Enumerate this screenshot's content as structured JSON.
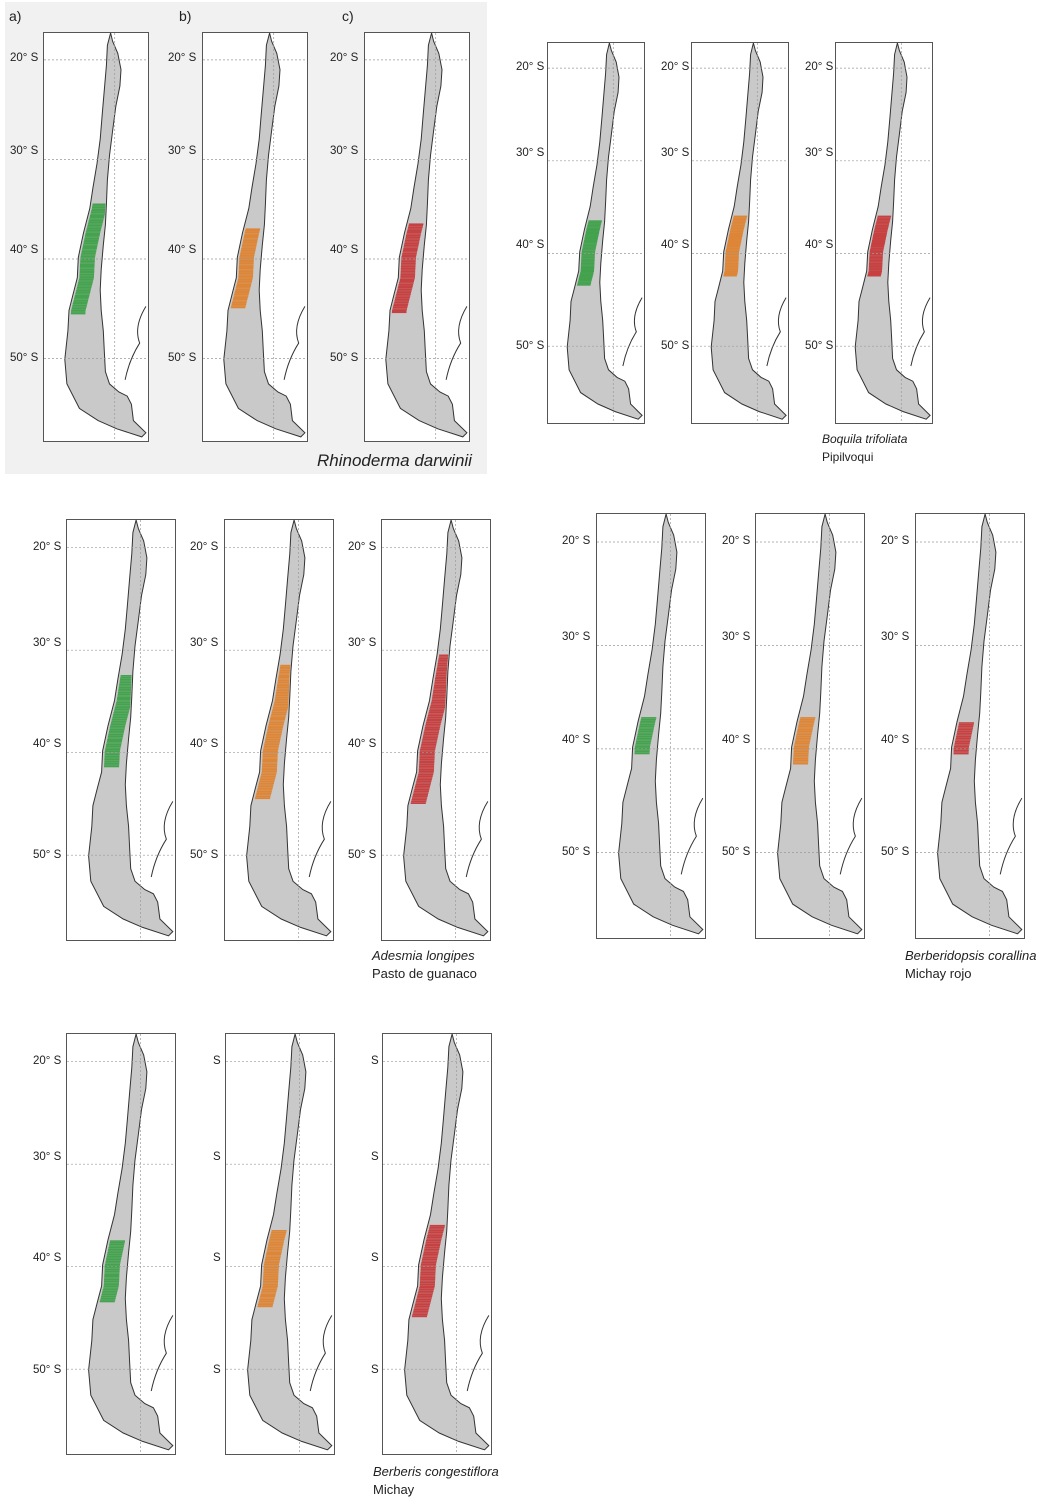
{
  "scenario_colors": [
    "#2e9b3a",
    "#e07a1f",
    "#c62a2a"
  ],
  "panel_letters": [
    "a)",
    "b)",
    "c)"
  ],
  "land_color": "#c9c9c9",
  "coast_color": "#333333",
  "species": [
    {
      "scientific_name": "Rhinoderma darwinii",
      "common_name": "",
      "lat_labels": [
        [
          "20° S",
          "30° S",
          "40° S",
          "50° S"
        ],
        [
          "20° S",
          "30° S",
          "40° S",
          "50° S"
        ],
        [
          "20° S",
          "30° S",
          "40° S",
          "50° S"
        ]
      ],
      "distribution_latitude_range": [
        [
          34.5,
          45.5
        ],
        [
          37.0,
          45.0
        ],
        [
          36.5,
          45.5
        ]
      ]
    },
    {
      "scientific_name": "Boquila trifoliata",
      "common_name": "Pipilvoqui",
      "lat_labels": [
        [
          "20° S",
          "30° S",
          "40° S",
          "50° S"
        ],
        [
          "20° S",
          "30° S",
          "40° S",
          "50° S"
        ],
        [
          "20° S",
          "30° S",
          "40° S",
          "50° S"
        ]
      ],
      "distribution_latitude_range": [
        [
          36.5,
          43.5
        ],
        [
          36.0,
          42.5
        ],
        [
          36.0,
          42.5
        ]
      ]
    },
    {
      "scientific_name": "Adesmia longipes",
      "common_name": "Pasto de guanaco",
      "lat_labels": [
        [
          "20° S",
          "30° S",
          "40° S",
          "50° S"
        ],
        [
          "20° S",
          "30° S",
          "40° S",
          "50° S"
        ],
        [
          "20° S",
          "30° S",
          "40° S",
          "50° S"
        ]
      ],
      "distribution_latitude_range": [
        [
          32.5,
          41.5
        ],
        [
          31.5,
          44.5
        ],
        [
          30.5,
          45.0
        ]
      ]
    },
    {
      "scientific_name": "Berberidopsis corallina",
      "common_name": "Michay rojo",
      "lat_labels": [
        [
          "20° S",
          "30° S",
          "40° S",
          "50° S"
        ],
        [
          "20° S",
          "30° S",
          "40° S",
          "50° S"
        ],
        [
          "20° S",
          "30° S",
          "40° S",
          "50° S"
        ]
      ],
      "distribution_latitude_range": [
        [
          37.0,
          40.5
        ],
        [
          37.0,
          41.5
        ],
        [
          37.5,
          40.5
        ]
      ]
    },
    {
      "scientific_name": "Berberis congestiflora",
      "common_name": "Michay",
      "lat_labels": [
        [
          "20° S",
          "30° S",
          "40° S",
          "50° S"
        ],
        [
          "S",
          "S",
          "S",
          "S"
        ],
        [
          "S",
          "S",
          "S",
          "S"
        ]
      ],
      "distribution_latitude_range": [
        [
          37.5,
          43.5
        ],
        [
          36.5,
          44.0
        ],
        [
          36.0,
          45.0
        ]
      ]
    }
  ]
}
